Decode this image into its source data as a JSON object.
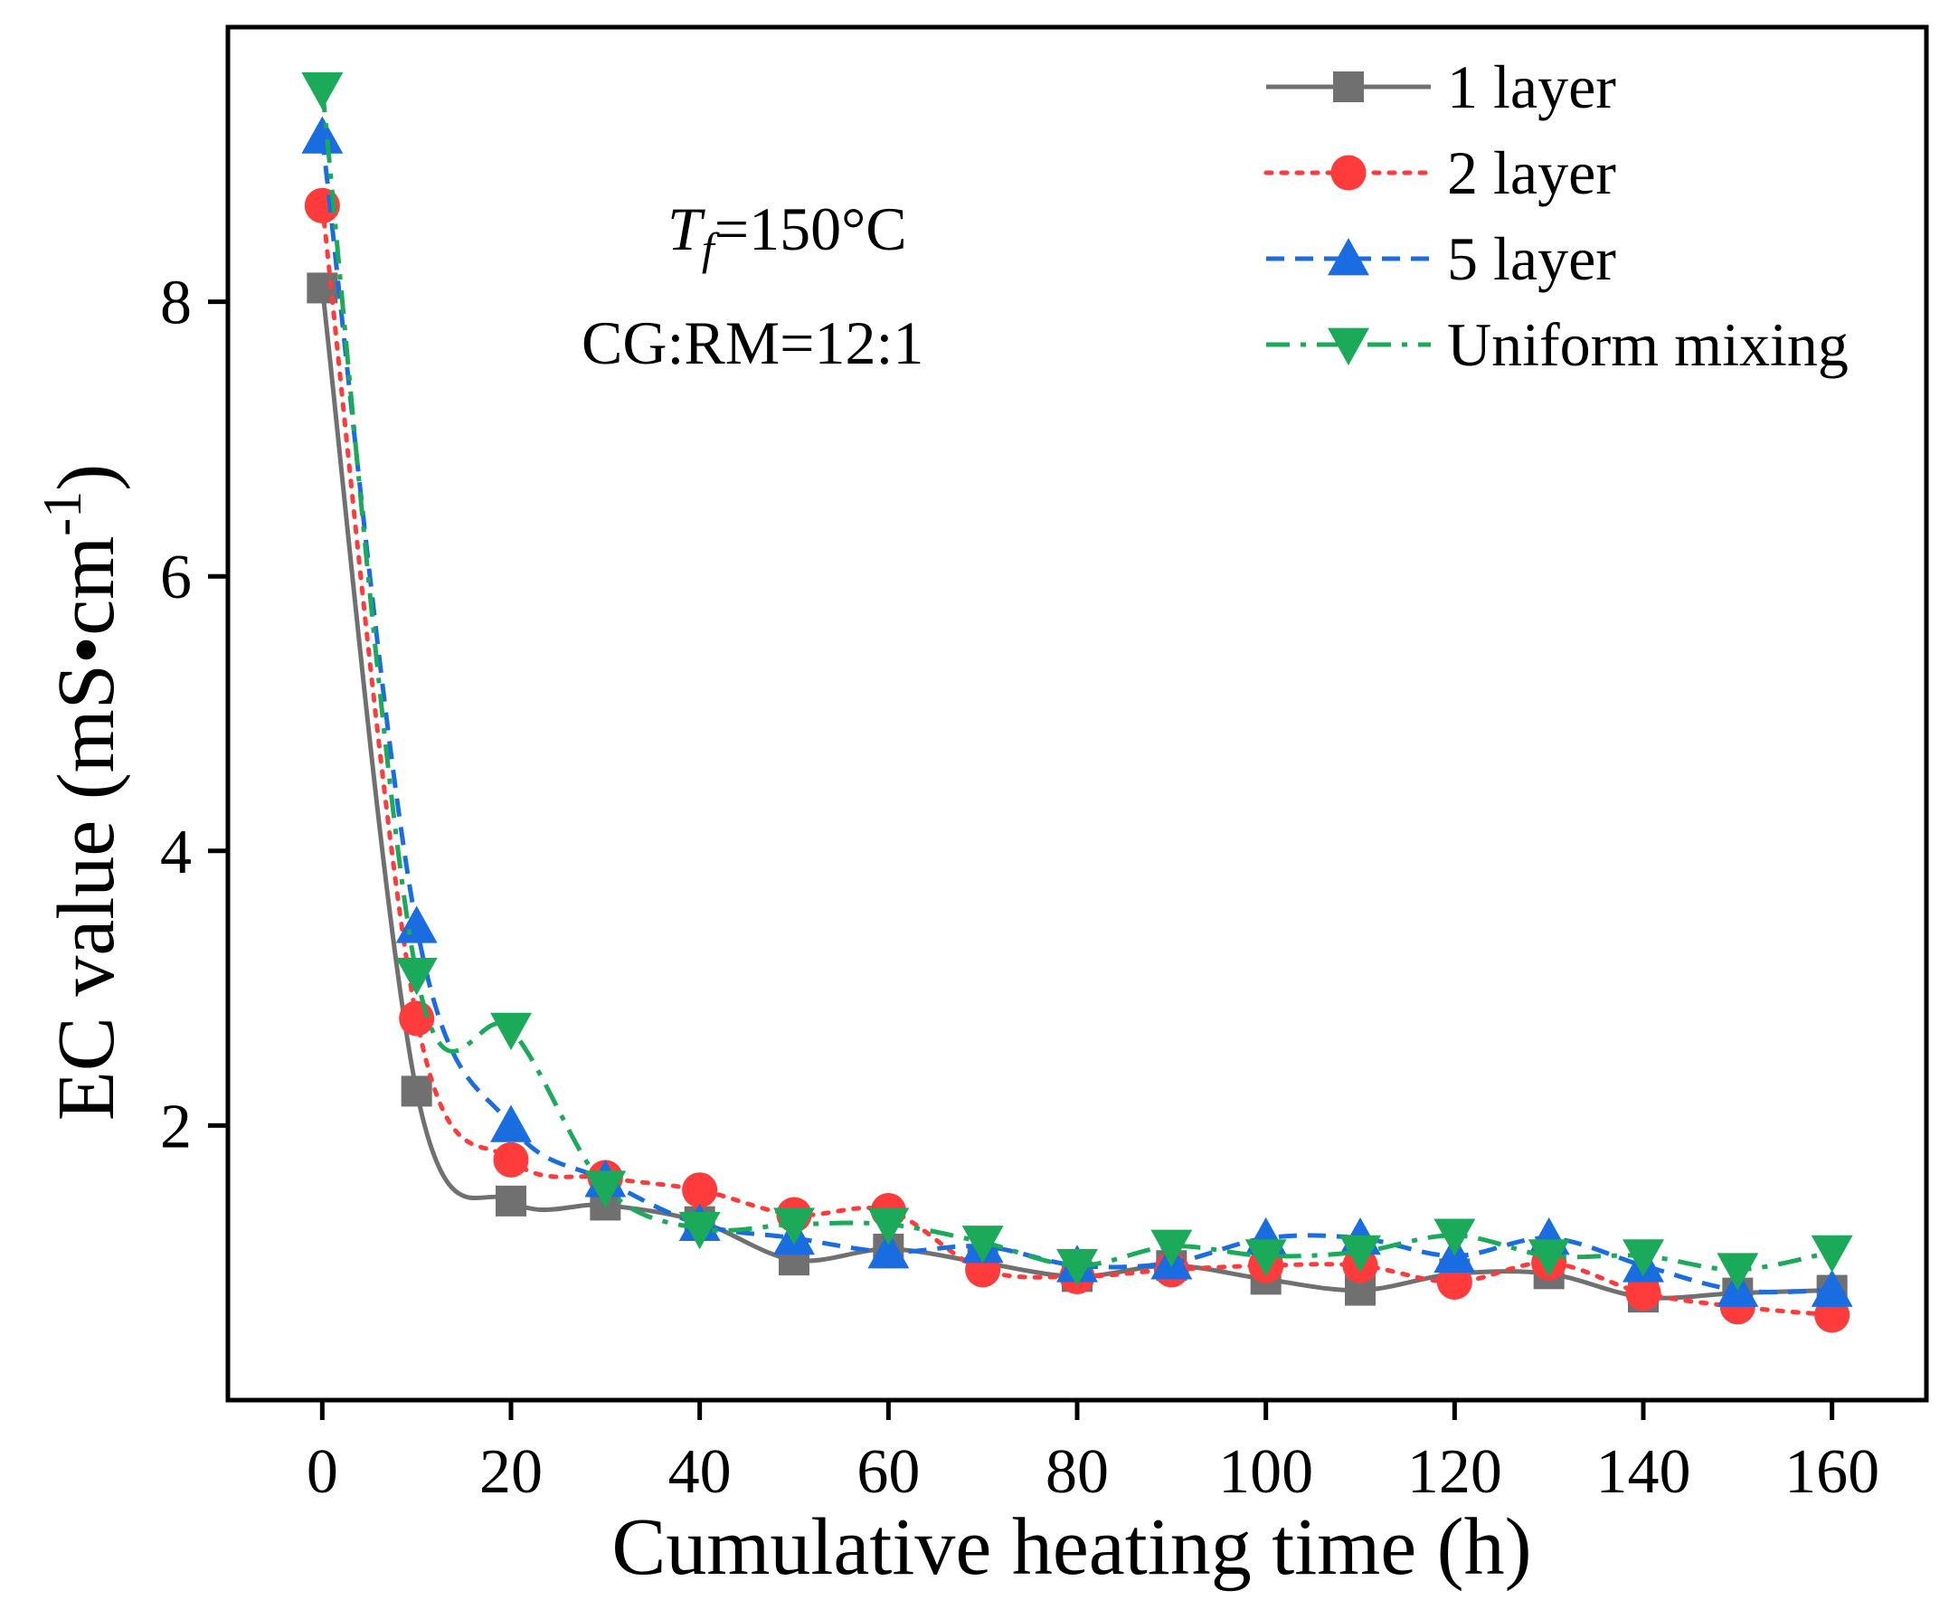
{
  "chart_data": {
    "type": "line",
    "title": "",
    "xlabel": "Cumulative heating time (h)",
    "ylabel_main": "EC value (mS•cm",
    "ylabel_sup": "-1",
    "ylabel_close": ")",
    "xlim": [
      -10,
      170
    ],
    "ylim": [
      0,
      10
    ],
    "xticks": [
      0,
      20,
      40,
      60,
      80,
      100,
      120,
      140,
      160
    ],
    "yticks": [
      2,
      4,
      6,
      8
    ],
    "annotation": {
      "symbol": "T",
      "subscript": "f",
      "condition": "=150°C",
      "ratio": "CG:RM=12:1"
    },
    "legend_position": "top-right",
    "x": [
      0,
      10,
      20,
      30,
      40,
      50,
      60,
      70,
      80,
      90,
      100,
      110,
      120,
      130,
      140,
      150,
      160
    ],
    "series": [
      {
        "name": "1 layer",
        "color": "#707070",
        "marker": "square",
        "dash": "solid",
        "values": [
          8.1,
          2.25,
          1.45,
          1.42,
          1.3,
          1.02,
          1.1,
          1.0,
          0.9,
          0.98,
          0.88,
          0.8,
          0.92,
          0.92,
          0.75,
          0.78,
          0.8
        ]
      },
      {
        "name": "2 layer",
        "color": "#ff3b3b",
        "marker": "circle",
        "dash": "dot",
        "values": [
          8.7,
          2.78,
          1.75,
          1.62,
          1.53,
          1.35,
          1.38,
          0.95,
          0.9,
          0.95,
          0.98,
          0.98,
          0.86,
          1.0,
          0.78,
          0.68,
          0.62
        ]
      },
      {
        "name": "5 layer",
        "color": "#1a6de0",
        "marker": "triangle-up",
        "dash": "dash",
        "values": [
          9.2,
          3.45,
          2.0,
          1.6,
          1.28,
          1.18,
          1.08,
          1.12,
          0.98,
          1.0,
          1.18,
          1.18,
          1.05,
          1.18,
          0.98,
          0.8,
          0.8
        ]
      },
      {
        "name": "Uniform mixing",
        "color": "#1aaa5a",
        "marker": "triangle-down",
        "dash": "dashdot",
        "values": [
          9.55,
          3.1,
          2.7,
          1.55,
          1.25,
          1.28,
          1.28,
          1.15,
          0.98,
          1.12,
          1.05,
          1.08,
          1.2,
          1.05,
          1.05,
          0.95,
          1.08
        ]
      }
    ]
  }
}
